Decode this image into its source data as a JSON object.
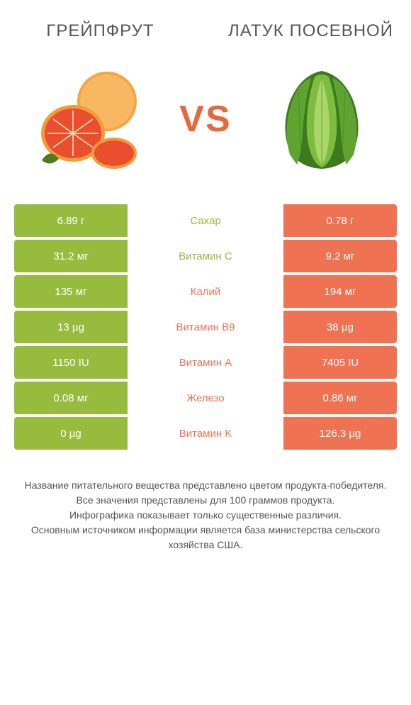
{
  "titles": {
    "left": "ГРЕЙПФРУТ",
    "right": "ЛАТУК ПОСЕВНОЙ"
  },
  "vs": "VS",
  "colors": {
    "green": "#97bc3d",
    "orange": "#ef7353",
    "vs": "#e8673b",
    "text": "#555555"
  },
  "rows": [
    {
      "left": "6.89 г",
      "label": "Сахар",
      "right": "0.78 г",
      "winner": "left"
    },
    {
      "left": "31.2 мг",
      "label": "Витамин C",
      "right": "9.2 мг",
      "winner": "left"
    },
    {
      "left": "135 мг",
      "label": "Калий",
      "right": "194 мг",
      "winner": "right"
    },
    {
      "left": "13 µg",
      "label": "Витамин B9",
      "right": "38 µg",
      "winner": "right"
    },
    {
      "left": "1150 IU",
      "label": "Витамин A",
      "right": "7405 IU",
      "winner": "right"
    },
    {
      "left": "0.08 мг",
      "label": "Железо",
      "right": "0.86 мг",
      "winner": "right"
    },
    {
      "left": "0 µg",
      "label": "Витамин K",
      "right": "126.3 µg",
      "winner": "right"
    }
  ],
  "footer": {
    "line1": "Название питательного вещества представлено цветом продукта-победителя.",
    "line2": "Все значения представлены для 100 граммов продукта.",
    "line3": "Инфографика показывает только существенные различия.",
    "line4": "Основным источником информации является база министерства сельского хозяйства США."
  }
}
